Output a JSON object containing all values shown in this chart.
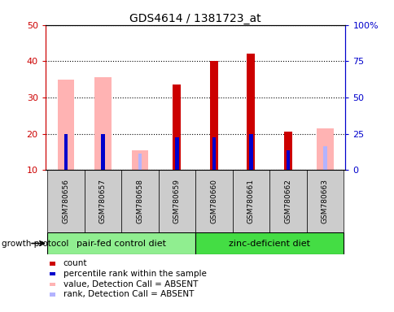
{
  "title": "GDS4614 / 1381723_at",
  "samples": [
    "GSM780656",
    "GSM780657",
    "GSM780658",
    "GSM780659",
    "GSM780660",
    "GSM780661",
    "GSM780662",
    "GSM780663"
  ],
  "count_values": [
    0,
    0,
    0,
    33.5,
    40.0,
    42.0,
    20.5,
    0
  ],
  "percentile_values": [
    20.0,
    20.0,
    0,
    19.0,
    19.0,
    20.0,
    15.5,
    0
  ],
  "absent_value_values": [
    35.0,
    35.5,
    15.5,
    0,
    0,
    0,
    0,
    21.5
  ],
  "absent_rank_values": [
    0,
    0,
    14.5,
    0,
    0,
    0,
    16.0,
    16.5
  ],
  "group1_label": "pair-fed control diet",
  "group2_label": "zinc-deficient diet",
  "ymin": 10,
  "ymax": 50,
  "yticks_left": [
    10,
    20,
    30,
    40,
    50
  ],
  "yticks_right": [
    0,
    25,
    50,
    75,
    100
  ],
  "ytick_right_labels": [
    "0",
    "25",
    "50",
    "75",
    "100%"
  ],
  "color_count": "#cc0000",
  "color_percentile": "#0000cc",
  "color_absent_value": "#ffb3b3",
  "color_absent_rank": "#b3b3ff",
  "color_group1_bg": "#90ee90",
  "color_group2_bg": "#44dd44",
  "color_sample_bg": "#cccccc",
  "color_left_axis": "#cc0000",
  "color_right_axis": "#0000cc",
  "growth_protocol_label": "growth protocol",
  "legend": [
    {
      "label": "count",
      "color": "#cc0000"
    },
    {
      "label": "percentile rank within the sample",
      "color": "#0000cc"
    },
    {
      "label": "value, Detection Call = ABSENT",
      "color": "#ffb3b3"
    },
    {
      "label": "rank, Detection Call = ABSENT",
      "color": "#b3b3ff"
    }
  ]
}
